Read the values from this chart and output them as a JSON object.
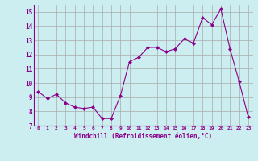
{
  "x": [
    0,
    1,
    2,
    3,
    4,
    5,
    6,
    7,
    8,
    9,
    10,
    11,
    12,
    13,
    14,
    15,
    16,
    17,
    18,
    19,
    20,
    21,
    22,
    23
  ],
  "y": [
    9.4,
    8.9,
    9.2,
    8.6,
    8.3,
    8.2,
    8.3,
    7.5,
    7.5,
    9.1,
    11.5,
    11.8,
    12.5,
    12.5,
    12.2,
    12.4,
    13.1,
    12.8,
    14.6,
    14.1,
    15.2,
    12.4,
    10.1,
    7.6
  ],
  "line_color": "#8B008B",
  "marker": "D",
  "marker_size": 2,
  "marker_color": "#8B008B",
  "bg_color": "#cceef0",
  "grid_color": "#aaaaaa",
  "xlabel": "Windchill (Refroidissement éolien,°C)",
  "xlabel_color": "#8B008B",
  "tick_color": "#8B008B",
  "ylim": [
    7,
    15.5
  ],
  "yticks": [
    7,
    8,
    9,
    10,
    11,
    12,
    13,
    14,
    15
  ],
  "xlim": [
    -0.5,
    23.5
  ],
  "xticks": [
    0,
    1,
    2,
    3,
    4,
    5,
    6,
    7,
    8,
    9,
    10,
    11,
    12,
    13,
    14,
    15,
    16,
    17,
    18,
    19,
    20,
    21,
    22,
    23
  ]
}
